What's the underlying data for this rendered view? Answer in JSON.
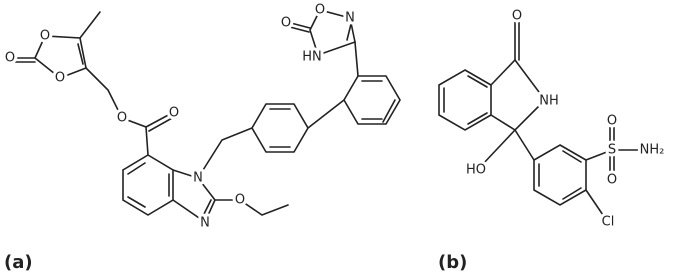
{
  "panels": [
    {
      "label": "(a)",
      "atoms": [
        "O",
        "O",
        "O",
        "O",
        "O",
        "N",
        "N",
        "O",
        "O",
        "O",
        "N",
        "HN"
      ]
    },
    {
      "label": "(b)",
      "atoms": [
        "O",
        "NH",
        "HO",
        "S",
        "O",
        "O",
        "NH₂",
        "Cl"
      ]
    }
  ]
}
